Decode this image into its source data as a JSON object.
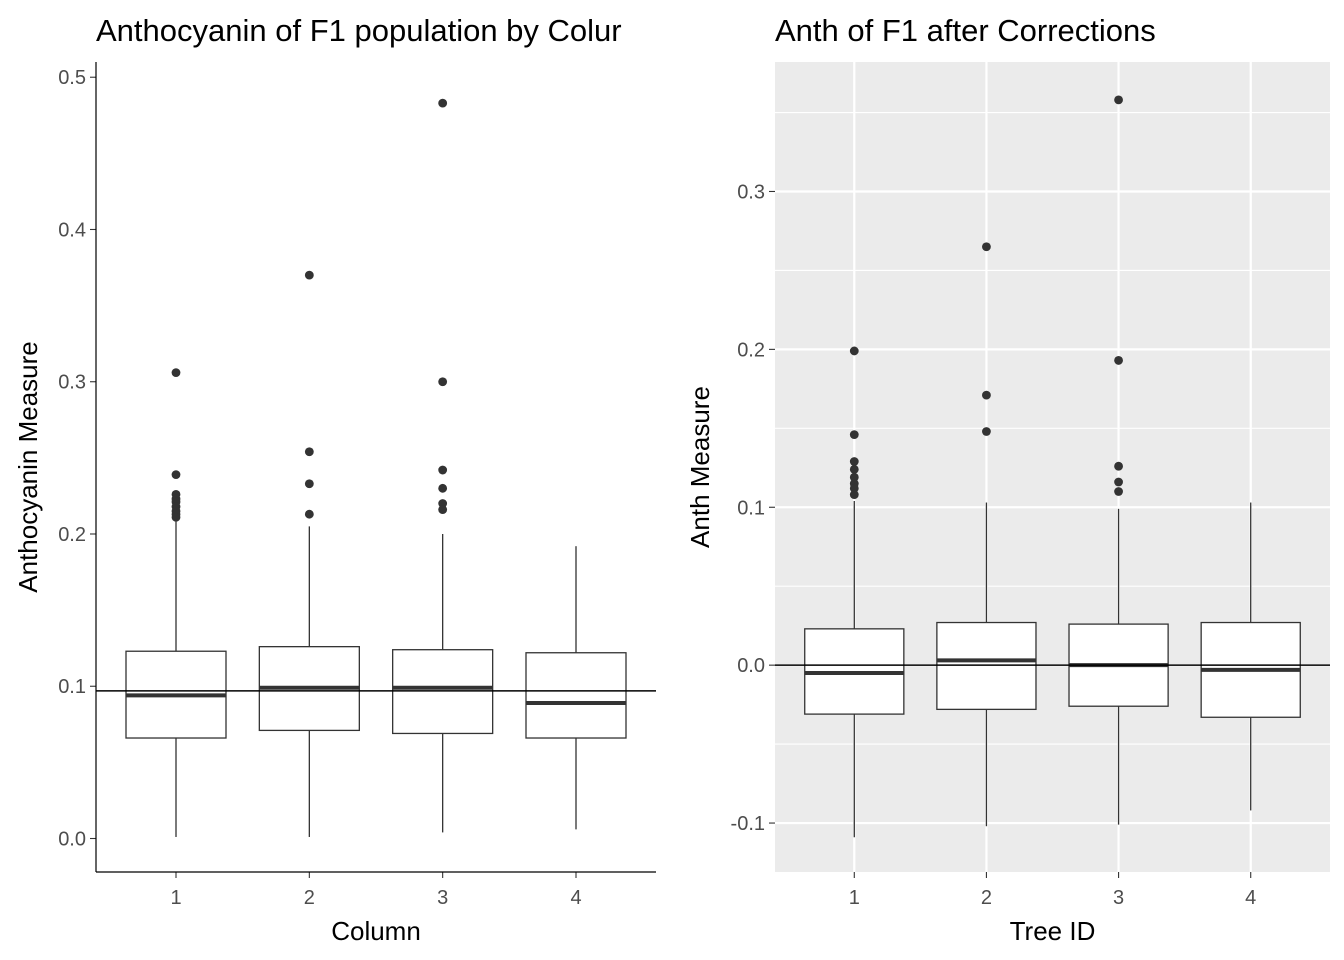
{
  "chart_data": [
    {
      "type": "box",
      "title": "Anthocyanin of F1 population by Colur",
      "xlabel": "Column",
      "ylabel": "Anthocyanin Measure",
      "theme": "classic",
      "grid": false,
      "ylim": [
        -0.022,
        0.51
      ],
      "yticks": [
        "0.0",
        "0.1",
        "0.2",
        "0.3",
        "0.4",
        "0.5"
      ],
      "reference_line": 0.097,
      "categories": [
        "1",
        "2",
        "3",
        "4"
      ],
      "boxes": [
        {
          "min": 0.001,
          "q1": 0.066,
          "median": 0.094,
          "q3": 0.123,
          "max": 0.21,
          "outliers": [
            0.306,
            0.239,
            0.226,
            0.223,
            0.221,
            0.218,
            0.215,
            0.213,
            0.211
          ]
        },
        {
          "min": 0.001,
          "q1": 0.071,
          "median": 0.099,
          "q3": 0.126,
          "max": 0.205,
          "outliers": [
            0.37,
            0.254,
            0.233,
            0.213
          ]
        },
        {
          "min": 0.004,
          "q1": 0.069,
          "median": 0.099,
          "q3": 0.124,
          "max": 0.2,
          "outliers": [
            0.483,
            0.3,
            0.242,
            0.23,
            0.22,
            0.216
          ]
        },
        {
          "min": 0.006,
          "q1": 0.066,
          "median": 0.089,
          "q3": 0.122,
          "max": 0.192,
          "outliers": []
        }
      ]
    },
    {
      "type": "box",
      "title": "Anth of F1 after Corrections",
      "xlabel": "Tree ID",
      "ylabel": "Anth Measure",
      "theme": "gray",
      "grid": true,
      "ylim": [
        -0.131,
        0.382
      ],
      "yticks": [
        "-0.1",
        "0.0",
        "0.1",
        "0.2",
        "0.3"
      ],
      "reference_line": 0.0,
      "categories": [
        "1",
        "2",
        "3",
        "4"
      ],
      "boxes": [
        {
          "min": -0.109,
          "q1": -0.031,
          "median": -0.005,
          "q3": 0.023,
          "max": 0.104,
          "outliers": [
            0.199,
            0.146,
            0.129,
            0.124,
            0.119,
            0.115,
            0.112,
            0.108
          ]
        },
        {
          "min": -0.102,
          "q1": -0.028,
          "median": 0.003,
          "q3": 0.027,
          "max": 0.103,
          "outliers": [
            0.265,
            0.171,
            0.148
          ]
        },
        {
          "min": -0.101,
          "q1": -0.026,
          "median": 0.0,
          "q3": 0.026,
          "max": 0.099,
          "outliers": [
            0.358,
            0.193,
            0.126,
            0.116,
            0.11
          ]
        },
        {
          "min": -0.092,
          "q1": -0.033,
          "median": -0.003,
          "q3": 0.027,
          "max": 0.103,
          "outliers": []
        }
      ]
    }
  ]
}
